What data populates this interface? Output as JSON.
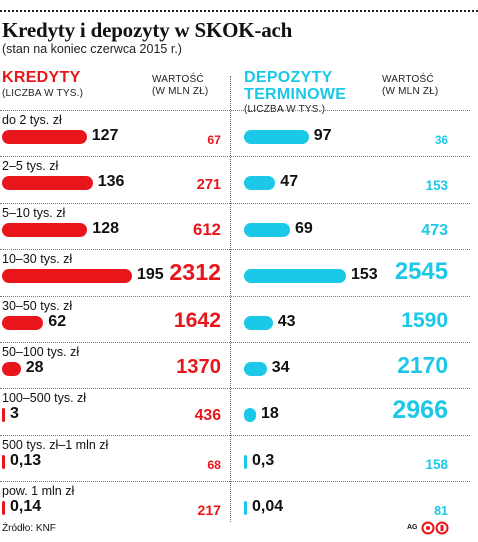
{
  "title": "Kredyty i depozyty w SKOK-ach",
  "subtitle": "(stan na koniec czerwca 2015 r.)",
  "headers": {
    "credits_line1": "KREDYTY",
    "credits_sub": "(LICZBA W TYS.)",
    "credits_value_line1": "WARTOŚĆ",
    "credits_value_line2": "(W MLN ZŁ)",
    "deposits_line1": "DEPOZYTY",
    "deposits_line2": "TERMINOWE",
    "deposits_sub": "(LICZBA W TYS.)",
    "deposits_value_line1": "WARTOŚĆ",
    "deposits_value_line2": "(W MLN ZŁ)"
  },
  "source": "Źródło: KNF",
  "credit": "AG",
  "colors": {
    "credits": "#e8161b",
    "deposits": "#1cc8e8"
  },
  "chart_data": {
    "type": "bar",
    "categories": [
      "do 2 tys. zł",
      "2–5 tys. zł",
      "5–10 tys. zł",
      "10–30 tys. zł",
      "30–50 tys. zł",
      "50–100 tys. zł",
      "100–500 tys. zł",
      "500 tys. zł–1 mln zł",
      "pow. 1 mln zł"
    ],
    "series": [
      {
        "name": "KREDYTY (LICZBA W TYS.)",
        "values": [
          127,
          136,
          128,
          195,
          62,
          28,
          3,
          0.13,
          0.14
        ],
        "labels": [
          "127",
          "136",
          "128",
          "195",
          "62",
          "28",
          "3",
          "0,13",
          "0,14"
        ]
      },
      {
        "name": "KREDYTY WARTOŚĆ (W MLN ZŁ)",
        "values": [
          67,
          271,
          612,
          2312,
          1642,
          1370,
          436,
          68,
          217
        ],
        "labels": [
          "67",
          "271",
          "612",
          "2312",
          "1642",
          "1370",
          "436",
          "68",
          "217"
        ]
      },
      {
        "name": "DEPOZYTY TERMINOWE (LICZBA W TYS.)",
        "values": [
          97,
          47,
          69,
          153,
          43,
          34,
          18,
          0.3,
          0.04
        ],
        "labels": [
          "97",
          "47",
          "69",
          "153",
          "43",
          "34",
          "18",
          "0,3",
          "0,04"
        ]
      },
      {
        "name": "DEPOZYTY TERMINOWE WARTOŚĆ (W MLN ZŁ)",
        "values": [
          36,
          153,
          473,
          2545,
          1590,
          2170,
          2966,
          158,
          81
        ],
        "labels": [
          "36",
          "153",
          "473",
          "2545",
          "1590",
          "2170",
          "2966",
          "158",
          "81"
        ]
      }
    ]
  }
}
